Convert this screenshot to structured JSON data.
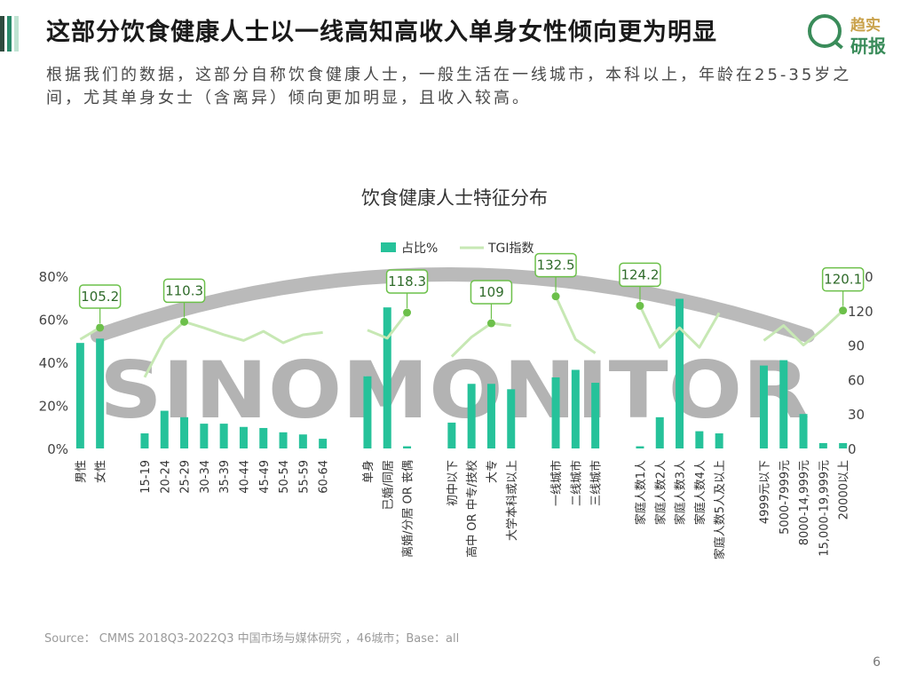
{
  "header": {
    "title": "这部分饮食健康人士以一线高知高收入单身女性倾向更为明显",
    "logo_top": "趋实",
    "logo_bottom": "研报"
  },
  "subtitle": "根据我们的数据，这部分自称饮食健康人士，一般生活在一线城市，本科以上，年龄在25-35岁之间，尤其单身女士（含离异）倾向更加明显，且收入较高。",
  "watermark": "SINOMONITOR",
  "footer": {
    "source": "Source： CMMS 2018Q3-2022Q3 中国市场与媒体研究 ，46城市；Base：all",
    "page_number": "6"
  },
  "colors": {
    "bar": "#26c29a",
    "line": "#c7e8b4",
    "marker": "#6cc04a",
    "callout_border": "#6cc04a",
    "watermark": "#9e9e9e"
  },
  "chart_data": {
    "type": "bar+line",
    "title": "饮食健康人士特征分布",
    "legend": [
      "占比%",
      "TGI指数"
    ],
    "legend_position": "top-center",
    "y_left": {
      "range": [
        0,
        80
      ],
      "ticks": [
        "0%",
        "20%",
        "40%",
        "60%",
        "80%"
      ]
    },
    "y_right": {
      "range": [
        0,
        150
      ],
      "ticks": [
        "0",
        "30",
        "60",
        "90",
        "120",
        "150"
      ]
    },
    "groups": [
      {
        "categories": [
          "男性",
          "女性"
        ],
        "share_pct": [
          49,
          51
        ],
        "tgi": [
          95,
          105.2
        ],
        "callout": {
          "index": 1,
          "label": "105.2"
        }
      },
      {
        "categories": [
          "15-19",
          "20-24",
          "25-29",
          "30-34",
          "35-39",
          "40-44",
          "45-49",
          "50-54",
          "55-59",
          "60-64"
        ],
        "share_pct": [
          7,
          17.5,
          14.5,
          11.5,
          11.5,
          10,
          9.5,
          7.5,
          6.5,
          4.5
        ],
        "tgi": [
          62,
          95,
          110.3,
          105,
          99,
          94,
          102,
          92,
          99,
          101
        ],
        "callout": {
          "index": 2,
          "label": "110.3"
        }
      },
      {
        "categories": [
          "单身",
          "已婚/同居",
          "离婚/分居 OR 丧偶"
        ],
        "share_pct": [
          33.5,
          65.5,
          1
        ],
        "tgi": [
          103,
          96,
          118.3
        ],
        "callout": {
          "index": 2,
          "label": "118.3"
        }
      },
      {
        "categories": [
          "初中以下",
          "高中 OR 中专/技校",
          "大专",
          "大学本科或以上"
        ],
        "share_pct": [
          12,
          30,
          30,
          27.5
        ],
        "tgi": [
          80,
          97,
          109,
          107
        ],
        "callout": {
          "index": 2,
          "label": "109"
        }
      },
      {
        "categories": [
          "一线城市",
          "二线城市",
          "三线城市"
        ],
        "share_pct": [
          33,
          36.5,
          30.5
        ],
        "tgi": [
          132.5,
          95,
          83
        ],
        "callout": {
          "index": 0,
          "label": "132.5"
        }
      },
      {
        "categories": [
          "家庭人数1人",
          "家庭人数2人",
          "家庭人数3人",
          "家庭人数4人",
          "家庭人数5人及以上"
        ],
        "share_pct": [
          1,
          14.5,
          69.5,
          8,
          7
        ],
        "tgi": [
          124.2,
          88,
          105,
          88,
          118
        ],
        "callout": {
          "index": 0,
          "label": "124.2"
        }
      },
      {
        "categories": [
          "4999元以下",
          "5000-7999元",
          "8000-14,999元",
          "15,000-19,999元",
          "20000以上"
        ],
        "share_pct": [
          38.5,
          41,
          16,
          2.5,
          2.5
        ],
        "tgi": [
          94,
          107,
          90,
          104,
          120.1
        ],
        "callout": {
          "index": 4,
          "label": "120.1"
        }
      }
    ]
  }
}
